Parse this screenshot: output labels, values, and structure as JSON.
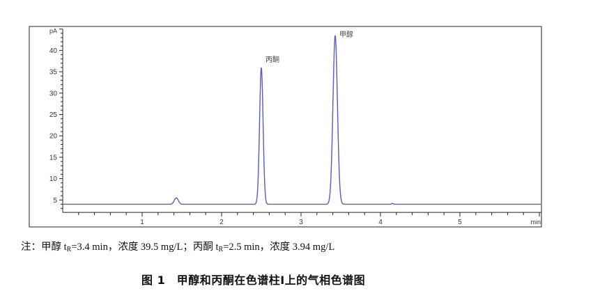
{
  "chart_data": {
    "type": "line",
    "title": "",
    "xlabel": "min",
    "ylabel": "pA",
    "xlim": [
      0,
      6.03
    ],
    "ylim": [
      2.1,
      45
    ],
    "x_ticks": [
      1,
      2,
      3,
      4,
      5
    ],
    "y_ticks": [
      5,
      10,
      15,
      20,
      25,
      30,
      35,
      40
    ],
    "grid": false,
    "line_color": "#5a5ac8",
    "baseline": 4.0,
    "peaks": [
      {
        "rt": 1.43,
        "height": 5.5,
        "width": 0.025,
        "label": ""
      },
      {
        "rt": 2.5,
        "height": 36.0,
        "width": 0.022,
        "label": "丙酮"
      },
      {
        "rt": 3.43,
        "height": 43.5,
        "width": 0.028,
        "label": "甲醇"
      },
      {
        "rt": 4.15,
        "height": 4.2,
        "width": 0.01,
        "label": ""
      }
    ]
  },
  "note": {
    "prefix": "注：甲醇 t",
    "sub1": "R",
    "part2": "=3.4 min，浓度 39.5 mg/L；丙酮 t",
    "sub2": "R",
    "part3": "=2.5 min，浓度 3.94 mg/L"
  },
  "caption": "图 1　甲醇和丙酮在色谱柱Ⅰ上的气相色谱图"
}
